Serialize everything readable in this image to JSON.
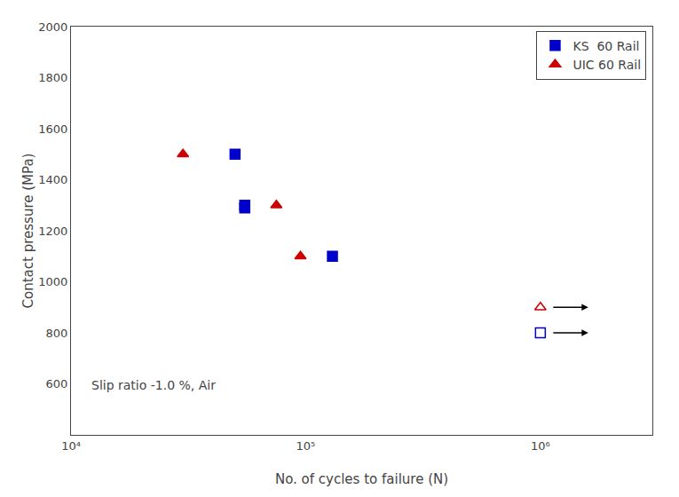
{
  "chart_data": {
    "type": "scatter",
    "xlabel": "No. of cycles to failure (N)",
    "ylabel": "Contact pressure (MPa)",
    "log": "x",
    "xlim": [
      10000,
      3000000
    ],
    "xticks": [
      {
        "value": 10000,
        "label": "10⁴"
      },
      {
        "value": 100000,
        "label": "10⁵"
      },
      {
        "value": 1000000,
        "label": "10⁶"
      }
    ],
    "ylim": [
      400,
      2000
    ],
    "yticks": [
      600,
      800,
      1000,
      1200,
      1400,
      1600,
      1800,
      2000
    ],
    "grid": false,
    "legend": "upper right",
    "series": [
      {
        "name": "KS  60 Rail",
        "color": "#0000cc",
        "marker": "square",
        "x": [
          50000,
          55000,
          55000,
          130000
        ],
        "values": [
          1500,
          1300,
          1290,
          1100
        ]
      },
      {
        "name": "UIC 60 Rail",
        "color": "#cc0000",
        "marker": "triangle-up",
        "x": [
          30000,
          75000,
          95000
        ],
        "values": [
          1500,
          1300,
          1100
        ]
      },
      {
        "color": "#0000cc",
        "marker": "square-open",
        "x": [
          1000000
        ],
        "values": [
          800
        ]
      },
      {
        "color": "#cc0000",
        "marker": "triangle-up-open",
        "x": [
          1000000
        ],
        "values": [
          900
        ]
      }
    ],
    "annotations": [
      {
        "text": "Slip ratio -1.0 %, Air",
        "x": 12000,
        "y": 560
      }
    ]
  }
}
